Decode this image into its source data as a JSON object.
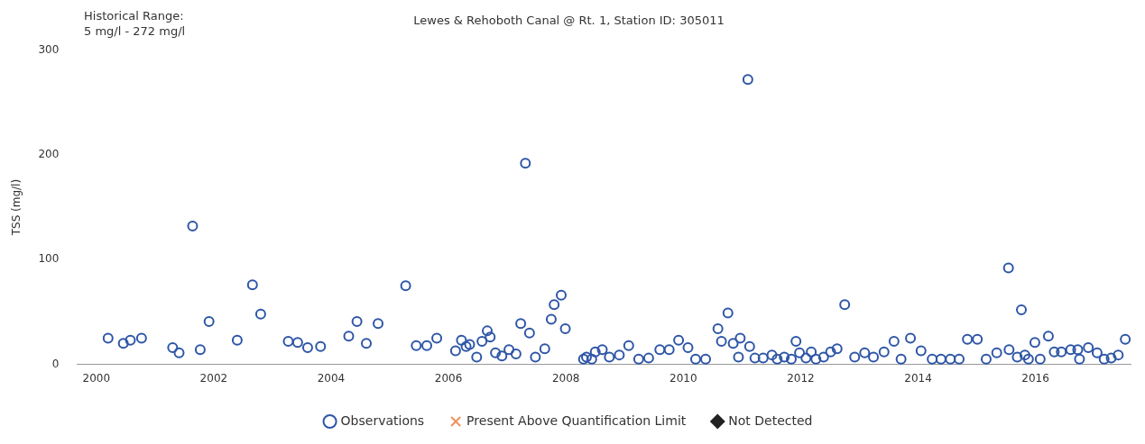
{
  "chart_data": {
    "type": "scatter",
    "title": "Lewes & Rehoboth Canal @ Rt. 1, Station ID: 305011",
    "ylabel": "TSS (mg/l)",
    "annotations": [
      "Historical Range:\n5 mg/l - 272 mg/l"
    ],
    "xlim": [
      1999.67,
      2017.62
    ],
    "xticks": [
      2000,
      2002,
      2004,
      2006,
      2008,
      2010,
      2012,
      2014,
      2016
    ],
    "ylim": [
      0,
      300
    ],
    "yticks": [
      0,
      100,
      200,
      300
    ],
    "grid": false,
    "legend": "bottom",
    "series": [
      {
        "name": "Observations",
        "color": "#2e56a6",
        "marker": "circle",
        "x": [
          2000.2,
          2000.46,
          2000.58,
          2000.77,
          2001.3,
          2001.41,
          2001.64,
          2001.77,
          2001.92,
          2002.4,
          2002.66,
          2002.8,
          2003.27,
          2003.43,
          2003.6,
          2003.82,
          2004.3,
          2004.44,
          2004.6,
          2004.8,
          2005.27,
          2005.45,
          2005.63,
          2005.8,
          2006.12,
          2006.22,
          2006.3,
          2006.36,
          2006.48,
          2006.57,
          2006.66,
          2006.71,
          2006.8,
          2006.91,
          2007.03,
          2007.15,
          2007.23,
          2007.31,
          2007.38,
          2007.48,
          2007.64,
          2007.75,
          2007.8,
          2007.92,
          2007.99,
          2008.3,
          2008.35,
          2008.44,
          2008.5,
          2008.62,
          2008.74,
          2008.91,
          2009.07,
          2009.24,
          2009.41,
          2009.6,
          2009.76,
          2009.92,
          2010.08,
          2010.21,
          2010.38,
          2010.59,
          2010.65,
          2010.76,
          2010.85,
          2010.94,
          2010.97,
          2011.1,
          2011.13,
          2011.22,
          2011.36,
          2011.51,
          2011.6,
          2011.72,
          2011.84,
          2011.92,
          2011.98,
          2012.09,
          2012.18,
          2012.26,
          2012.39,
          2012.51,
          2012.62,
          2012.75,
          2012.92,
          2013.09,
          2013.24,
          2013.42,
          2013.59,
          2013.71,
          2013.87,
          2014.05,
          2014.24,
          2014.39,
          2014.55,
          2014.7,
          2014.84,
          2015.01,
          2015.16,
          2015.34,
          2015.54,
          2015.55,
          2015.69,
          2015.76,
          2015.82,
          2015.88,
          2015.99,
          2016.08,
          2016.22,
          2016.32,
          2016.44,
          2016.6,
          2016.72,
          2016.75,
          2016.9,
          2017.05,
          2017.17,
          2017.29,
          2017.41,
          2017.53
        ],
        "values": [
          25,
          20,
          23,
          25,
          16,
          11,
          132,
          14,
          41,
          23,
          76,
          48,
          22,
          21,
          16,
          17,
          27,
          41,
          20,
          39,
          75,
          18,
          18,
          25,
          13,
          23,
          17,
          19,
          7,
          22,
          32,
          26,
          11,
          8,
          14,
          10,
          39,
          192,
          30,
          7,
          15,
          43,
          57,
          66,
          34,
          5,
          7,
          5,
          12,
          14,
          7,
          9,
          18,
          5,
          6,
          14,
          14,
          23,
          16,
          5,
          5,
          34,
          22,
          49,
          20,
          7,
          25,
          272,
          17,
          6,
          6,
          9,
          5,
          7,
          5,
          22,
          11,
          6,
          12,
          5,
          7,
          12,
          15,
          57,
          7,
          11,
          7,
          12,
          22,
          5,
          25,
          13,
          5,
          5,
          5,
          5,
          24,
          24,
          5,
          11,
          92,
          14,
          7,
          52,
          9,
          5,
          21,
          5,
          27,
          12,
          12,
          14,
          14,
          5,
          16,
          11,
          5,
          6,
          9,
          24
        ]
      },
      {
        "name": "Present Above Quantification Limit",
        "color": "#f0905a",
        "marker": "cross"
      },
      {
        "name": "Not Detected",
        "color": "#222222",
        "marker": "diamond"
      }
    ]
  }
}
